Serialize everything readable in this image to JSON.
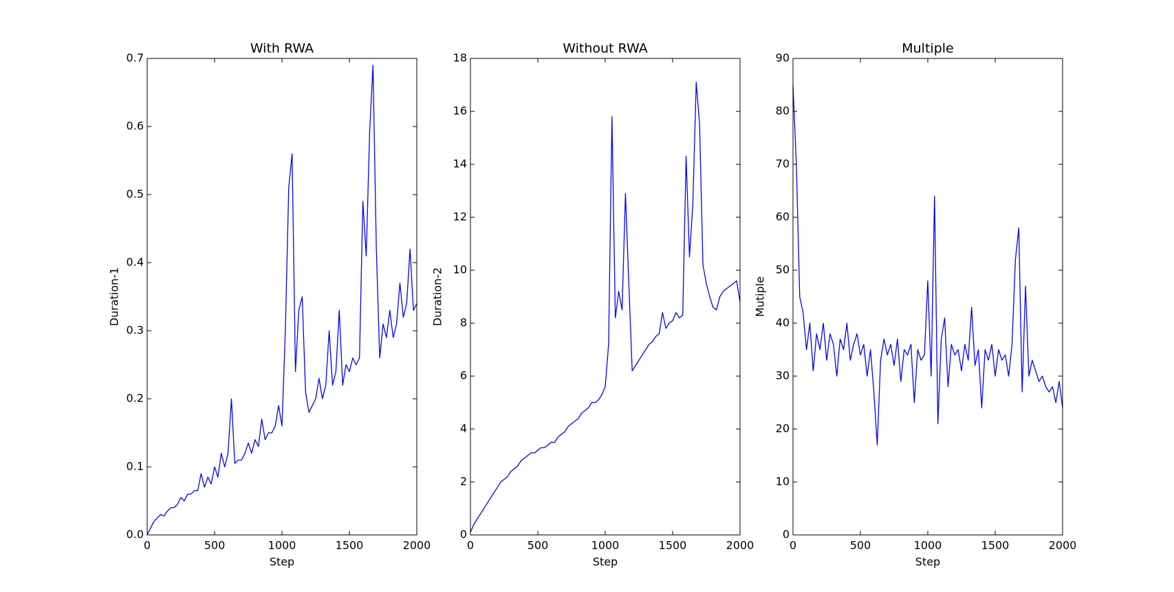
{
  "chart_data": [
    {
      "type": "line",
      "title": "With RWA",
      "xlabel": "Step",
      "ylabel": "Duration-1",
      "color": "#0000ff",
      "xlim": [
        0,
        2000
      ],
      "xticks": [
        0,
        500,
        1000,
        1500,
        2000
      ],
      "ylim": [
        0,
        0.7
      ],
      "yticks": [
        {
          "value": 0,
          "label": "0.0"
        },
        0.1,
        0.2,
        0.3,
        0.4,
        0.5,
        0.6,
        0.7
      ],
      "x": [
        0,
        25,
        50,
        75,
        100,
        125,
        150,
        175,
        200,
        225,
        250,
        275,
        300,
        325,
        350,
        375,
        400,
        425,
        450,
        475,
        500,
        525,
        550,
        575,
        600,
        625,
        650,
        675,
        700,
        725,
        750,
        775,
        800,
        825,
        850,
        875,
        900,
        925,
        950,
        975,
        1000,
        1025,
        1050,
        1075,
        1100,
        1125,
        1150,
        1175,
        1200,
        1225,
        1250,
        1275,
        1300,
        1325,
        1350,
        1375,
        1400,
        1425,
        1450,
        1475,
        1500,
        1525,
        1550,
        1575,
        1600,
        1625,
        1650,
        1675,
        1700,
        1725,
        1750,
        1775,
        1800,
        1825,
        1850,
        1875,
        1900,
        1925,
        1950,
        1975,
        2000
      ],
      "values": [
        0,
        0.01,
        0.02,
        0.025,
        0.03,
        0.028,
        0.035,
        0.04,
        0.04,
        0.045,
        0.055,
        0.05,
        0.06,
        0.06,
        0.065,
        0.065,
        0.09,
        0.07,
        0.085,
        0.075,
        0.1,
        0.085,
        0.12,
        0.1,
        0.12,
        0.2,
        0.105,
        0.11,
        0.11,
        0.12,
        0.135,
        0.12,
        0.14,
        0.13,
        0.17,
        0.14,
        0.15,
        0.15,
        0.16,
        0.19,
        0.16,
        0.3,
        0.51,
        0.56,
        0.24,
        0.33,
        0.35,
        0.21,
        0.18,
        0.19,
        0.2,
        0.23,
        0.2,
        0.22,
        0.3,
        0.22,
        0.24,
        0.33,
        0.22,
        0.25,
        0.24,
        0.26,
        0.25,
        0.26,
        0.49,
        0.41,
        0.59,
        0.69,
        0.42,
        0.26,
        0.31,
        0.29,
        0.33,
        0.29,
        0.31,
        0.37,
        0.32,
        0.34,
        0.42,
        0.33,
        0.34
      ]
    },
    {
      "type": "line",
      "title": "Without RWA",
      "xlabel": "Step",
      "ylabel": "Duration-2",
      "color": "#0000ff",
      "xlim": [
        0,
        2000
      ],
      "xticks": [
        0,
        500,
        1000,
        1500,
        2000
      ],
      "ylim": [
        0,
        18
      ],
      "yticks": [
        0,
        2,
        4,
        6,
        8,
        10,
        12,
        14,
        16,
        18
      ],
      "x": [
        0,
        25,
        50,
        75,
        100,
        125,
        150,
        175,
        200,
        225,
        250,
        275,
        300,
        325,
        350,
        375,
        400,
        425,
        450,
        475,
        500,
        525,
        550,
        575,
        600,
        625,
        650,
        675,
        700,
        725,
        750,
        775,
        800,
        825,
        850,
        875,
        900,
        925,
        950,
        975,
        1000,
        1025,
        1050,
        1075,
        1100,
        1125,
        1150,
        1175,
        1200,
        1225,
        1250,
        1275,
        1300,
        1325,
        1350,
        1375,
        1400,
        1425,
        1450,
        1475,
        1500,
        1525,
        1550,
        1575,
        1600,
        1625,
        1650,
        1675,
        1700,
        1725,
        1750,
        1775,
        1800,
        1825,
        1850,
        1875,
        1900,
        1925,
        1950,
        1975,
        2000
      ],
      "values": [
        0.1,
        0.4,
        0.6,
        0.8,
        1.0,
        1.2,
        1.4,
        1.6,
        1.8,
        2.0,
        2.1,
        2.2,
        2.4,
        2.5,
        2.6,
        2.8,
        2.9,
        3.0,
        3.1,
        3.1,
        3.2,
        3.3,
        3.3,
        3.4,
        3.5,
        3.5,
        3.7,
        3.8,
        3.9,
        4.1,
        4.2,
        4.3,
        4.4,
        4.6,
        4.7,
        4.8,
        5.0,
        5.0,
        5.1,
        5.3,
        5.6,
        7.2,
        15.8,
        8.2,
        9.2,
        8.5,
        12.9,
        9.5,
        6.2,
        6.4,
        6.6,
        6.8,
        7.0,
        7.2,
        7.3,
        7.5,
        7.6,
        8.4,
        7.8,
        8.0,
        8.1,
        8.4,
        8.2,
        8.3,
        14.3,
        10.5,
        12.5,
        17.1,
        15.5,
        10.2,
        9.5,
        9.0,
        8.6,
        8.5,
        9.0,
        9.2,
        9.3,
        9.4,
        9.5,
        9.6,
        8.8
      ]
    },
    {
      "type": "line",
      "title": "Multiple",
      "xlabel": "Step",
      "ylabel": "Mutiple",
      "color": "#0000ff",
      "xlim": [
        0,
        2000
      ],
      "xticks": [
        0,
        500,
        1000,
        1500,
        2000
      ],
      "ylim": [
        0,
        90
      ],
      "yticks": [
        0,
        10,
        20,
        30,
        40,
        50,
        60,
        70,
        80,
        90
      ],
      "x": [
        0,
        25,
        50,
        75,
        100,
        125,
        150,
        175,
        200,
        225,
        250,
        275,
        300,
        325,
        350,
        375,
        400,
        425,
        450,
        475,
        500,
        525,
        550,
        575,
        600,
        625,
        650,
        675,
        700,
        725,
        750,
        775,
        800,
        825,
        850,
        875,
        900,
        925,
        950,
        975,
        1000,
        1025,
        1050,
        1075,
        1100,
        1125,
        1150,
        1175,
        1200,
        1225,
        1250,
        1275,
        1300,
        1325,
        1350,
        1375,
        1400,
        1425,
        1450,
        1475,
        1500,
        1525,
        1550,
        1575,
        1600,
        1625,
        1650,
        1675,
        1700,
        1725,
        1750,
        1775,
        1800,
        1825,
        1850,
        1875,
        1900,
        1925,
        1950,
        1975,
        2000
      ],
      "values": [
        85,
        70,
        45,
        42,
        35,
        40,
        31,
        38,
        35,
        40,
        33,
        38,
        36,
        30,
        37,
        35,
        40,
        33,
        36,
        38,
        34,
        36,
        30,
        35,
        27,
        17,
        33,
        37,
        34,
        36,
        32,
        37,
        29,
        35,
        34,
        36,
        25,
        35,
        33,
        34,
        48,
        30,
        64,
        21,
        37,
        41,
        28,
        36,
        34,
        35,
        31,
        36,
        33,
        43,
        32,
        35,
        24,
        35,
        33,
        36,
        30,
        35,
        33,
        34,
        30,
        36,
        52,
        58,
        27,
        47,
        30,
        33,
        31,
        29,
        30,
        28,
        27,
        28,
        25,
        29,
        24
      ]
    }
  ]
}
